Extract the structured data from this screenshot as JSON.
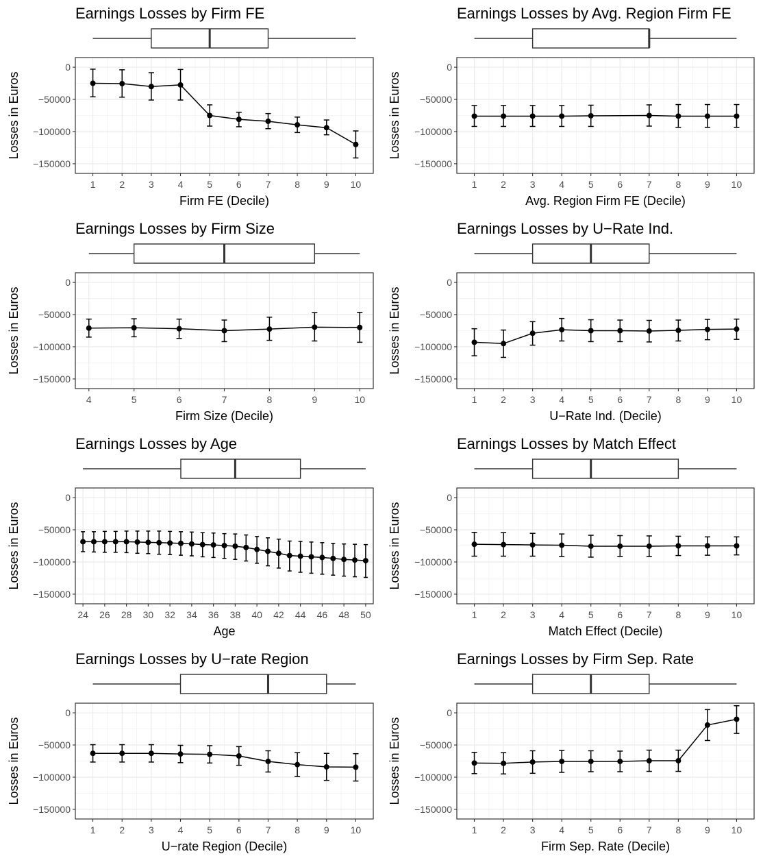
{
  "chart_data": [
    {
      "type": "line",
      "title": "Earnings Losses by Firm FE",
      "xlabel": "Firm FE (Decile)",
      "ylabel": "Losses in Euros",
      "xlim": [
        0.4,
        10.6
      ],
      "ylim": [
        -165000,
        15000
      ],
      "yticks": [
        0,
        -50000,
        -100000,
        -150000
      ],
      "xticks": [
        1,
        2,
        3,
        4,
        5,
        6,
        7,
        8,
        9,
        10
      ],
      "x": [
        1,
        2,
        3,
        4,
        5,
        6,
        7,
        8,
        9,
        10
      ],
      "y": [
        -25000,
        -25500,
        -30000,
        -27500,
        -75000,
        -81000,
        -84000,
        -89500,
        -94000,
        -120000
      ],
      "ylow": [
        -46000,
        -46500,
        -51000,
        -51000,
        -91500,
        -92500,
        -95500,
        -101500,
        -105000,
        -141000
      ],
      "yhigh": [
        -3000,
        -4000,
        -8500,
        -3500,
        -58500,
        -70000,
        -72000,
        -77500,
        -82000,
        -99000
      ],
      "box": {
        "min": 1,
        "q1": 3,
        "median": 5,
        "q3": 7,
        "max": 10
      },
      "grid": true
    },
    {
      "type": "line",
      "title": "Earnings Losses by Avg. Region Firm FE",
      "xlabel": "Avg. Region Firm FE (Decile)",
      "ylabel": "Losses in Euros",
      "xlim": [
        0.4,
        10.6
      ],
      "ylim": [
        -165000,
        15000
      ],
      "yticks": [
        0,
        -50000,
        -100000,
        -150000
      ],
      "xticks": [
        1,
        2,
        3,
        4,
        5,
        6,
        7,
        8,
        9,
        10
      ],
      "x": [
        1,
        2,
        3,
        4,
        5,
        7,
        8,
        9,
        10
      ],
      "y": [
        -76000,
        -76000,
        -76000,
        -76000,
        -75500,
        -75000,
        -76000,
        -76000,
        -76000
      ],
      "ylow": [
        -92000,
        -92000,
        -92000,
        -92000,
        -92000,
        -91500,
        -93500,
        -93500,
        -93500
      ],
      "yhigh": [
        -59500,
        -59500,
        -59500,
        -59500,
        -59000,
        -58500,
        -58000,
        -58000,
        -58000
      ],
      "box": {
        "min": 1,
        "q1": 3,
        "median": 7,
        "q3": 7,
        "max": 10
      },
      "grid": true
    },
    {
      "type": "line",
      "title": "Earnings Losses by Firm Size",
      "xlabel": "Firm Size (Decile)",
      "ylabel": "Losses in Euros",
      "xlim": [
        3.7,
        10.3
      ],
      "ylim": [
        -165000,
        15000
      ],
      "yticks": [
        0,
        -50000,
        -100000,
        -150000
      ],
      "xticks": [
        4,
        5,
        6,
        7,
        8,
        9,
        10
      ],
      "x": [
        4,
        5,
        6,
        7,
        8,
        9,
        10
      ],
      "y": [
        -71000,
        -70500,
        -72000,
        -75000,
        -72500,
        -69500,
        -70000
      ],
      "ylow": [
        -85000,
        -84500,
        -87000,
        -92000,
        -90000,
        -91000,
        -93000
      ],
      "yhigh": [
        -57000,
        -56500,
        -57000,
        -58500,
        -54000,
        -47000,
        -46500
      ],
      "box": {
        "min": 4,
        "q1": 5,
        "median": 7,
        "q3": 9,
        "max": 10
      },
      "grid": true
    },
    {
      "type": "line",
      "title": "Earnings Losses by U−Rate Ind.",
      "xlabel": "U−Rate Ind. (Decile)",
      "ylabel": "Losses in Euros",
      "xlim": [
        0.4,
        10.6
      ],
      "ylim": [
        -165000,
        15000
      ],
      "yticks": [
        0,
        -50000,
        -100000,
        -150000
      ],
      "xticks": [
        1,
        2,
        3,
        4,
        5,
        6,
        7,
        8,
        9,
        10
      ],
      "x": [
        1,
        2,
        3,
        4,
        5,
        6,
        7,
        8,
        9,
        10
      ],
      "y": [
        -93000,
        -95000,
        -79000,
        -73500,
        -75000,
        -75000,
        -75500,
        -74500,
        -73000,
        -72500
      ],
      "ylow": [
        -114000,
        -116500,
        -97500,
        -91000,
        -92000,
        -92000,
        -92500,
        -91000,
        -89000,
        -88500
      ],
      "yhigh": [
        -72000,
        -74000,
        -61000,
        -56000,
        -58000,
        -58500,
        -59000,
        -58500,
        -57500,
        -57000
      ],
      "box": {
        "min": 1,
        "q1": 3,
        "median": 5,
        "q3": 7,
        "max": 10
      },
      "grid": true
    },
    {
      "type": "line",
      "title": "Earnings Losses by Age",
      "xlabel": "Age",
      "ylabel": "Losses in Euros",
      "xlim": [
        23.3,
        50.7
      ],
      "ylim": [
        -165000,
        15000
      ],
      "yticks": [
        0,
        -50000,
        -100000,
        -150000
      ],
      "xticks": [
        24,
        26,
        28,
        30,
        32,
        34,
        36,
        38,
        40,
        42,
        44,
        46,
        48,
        50
      ],
      "x": [
        24,
        25,
        26,
        27,
        28,
        29,
        30,
        31,
        32,
        33,
        34,
        35,
        36,
        37,
        38,
        39,
        40,
        41,
        42,
        43,
        44,
        45,
        46,
        47,
        48,
        49,
        50
      ],
      "y": [
        -68500,
        -68500,
        -68500,
        -68500,
        -68500,
        -69000,
        -69500,
        -70000,
        -70500,
        -71000,
        -72000,
        -73000,
        -73500,
        -74500,
        -75500,
        -77500,
        -80500,
        -83500,
        -86500,
        -90000,
        -91000,
        -92000,
        -93000,
        -94500,
        -96000,
        -97000,
        -98000
      ],
      "ylow": [
        -84000,
        -84500,
        -85000,
        -85000,
        -85500,
        -86500,
        -87000,
        -88000,
        -88500,
        -89500,
        -90500,
        -92000,
        -93000,
        -94500,
        -96000,
        -98500,
        -102000,
        -106000,
        -109500,
        -114000,
        -116000,
        -117500,
        -119000,
        -120500,
        -122000,
        -123000,
        -124000
      ],
      "yhigh": [
        -53000,
        -53000,
        -52500,
        -52500,
        -52000,
        -52000,
        -52000,
        -52000,
        -52500,
        -53000,
        -53500,
        -54500,
        -55000,
        -56000,
        -56500,
        -58000,
        -60500,
        -62500,
        -64500,
        -67500,
        -68000,
        -69000,
        -70000,
        -71000,
        -72000,
        -72500,
        -73000
      ],
      "box": {
        "min": 24,
        "q1": 33,
        "median": 38,
        "q3": 44,
        "max": 50
      },
      "grid": true
    },
    {
      "type": "line",
      "title": "Earnings Losses by Match Effect",
      "xlabel": "Match Effect (Decile)",
      "ylabel": "Losses in Euros",
      "xlim": [
        0.4,
        10.6
      ],
      "ylim": [
        -165000,
        15000
      ],
      "yticks": [
        0,
        -50000,
        -100000,
        -150000
      ],
      "xticks": [
        1,
        2,
        3,
        4,
        5,
        6,
        7,
        8,
        9,
        10
      ],
      "x": [
        1,
        2,
        3,
        4,
        5,
        6,
        7,
        8,
        9,
        10
      ],
      "y": [
        -72500,
        -73000,
        -73500,
        -74000,
        -75500,
        -75500,
        -75500,
        -75000,
        -75000,
        -75000
      ],
      "ylow": [
        -91000,
        -91000,
        -91000,
        -91500,
        -92500,
        -91500,
        -91500,
        -90000,
        -89500,
        -89000
      ],
      "yhigh": [
        -54000,
        -54500,
        -55500,
        -56500,
        -58500,
        -59000,
        -59500,
        -60000,
        -61000,
        -61000
      ],
      "box": {
        "min": 1,
        "q1": 3,
        "median": 5,
        "q3": 8,
        "max": 10
      },
      "grid": true
    },
    {
      "type": "line",
      "title": "Earnings Losses by U−rate Region",
      "xlabel": "U−rate Region (Decile)",
      "ylabel": "Losses in Euros",
      "xlim": [
        0.4,
        10.6
      ],
      "ylim": [
        -165000,
        15000
      ],
      "yticks": [
        0,
        -50000,
        -100000,
        -150000
      ],
      "xticks": [
        1,
        2,
        3,
        4,
        5,
        6,
        7,
        8,
        9,
        10
      ],
      "x": [
        1,
        2,
        3,
        4,
        5,
        6,
        7,
        8,
        9,
        10
      ],
      "y": [
        -63000,
        -63000,
        -63000,
        -64000,
        -64500,
        -67000,
        -75500,
        -80500,
        -84000,
        -84500
      ],
      "ylow": [
        -76500,
        -76500,
        -76500,
        -77500,
        -78000,
        -81500,
        -92000,
        -99000,
        -105000,
        -106000
      ],
      "yhigh": [
        -49500,
        -49500,
        -49500,
        -50500,
        -51000,
        -52500,
        -59000,
        -62000,
        -63000,
        -63500
      ],
      "box": {
        "min": 1,
        "q1": 4,
        "median": 7,
        "q3": 9,
        "max": 10
      },
      "grid": true
    },
    {
      "type": "line",
      "title": "Earnings Losses by Firm Sep. Rate",
      "xlabel": "Firm Sep. Rate (Decile)",
      "ylabel": "Losses in Euros",
      "xlim": [
        0.4,
        10.6
      ],
      "ylim": [
        -165000,
        15000
      ],
      "yticks": [
        0,
        -50000,
        -100000,
        -150000
      ],
      "xticks": [
        1,
        2,
        3,
        4,
        5,
        6,
        7,
        8,
        9,
        10
      ],
      "x": [
        1,
        2,
        3,
        4,
        5,
        6,
        7,
        8,
        9,
        10
      ],
      "y": [
        -78000,
        -78500,
        -76500,
        -75500,
        -75500,
        -75500,
        -74500,
        -74500,
        -19000,
        -10000
      ],
      "ylow": [
        -94500,
        -95000,
        -94000,
        -92500,
        -91500,
        -91500,
        -91000,
        -91000,
        -43000,
        -32000
      ],
      "yhigh": [
        -61500,
        -62000,
        -59000,
        -58500,
        -59000,
        -59500,
        -58000,
        -58000,
        5000,
        11000
      ],
      "box": {
        "min": 1,
        "q1": 3,
        "median": 5,
        "q3": 7,
        "max": 10
      },
      "grid": true
    }
  ]
}
